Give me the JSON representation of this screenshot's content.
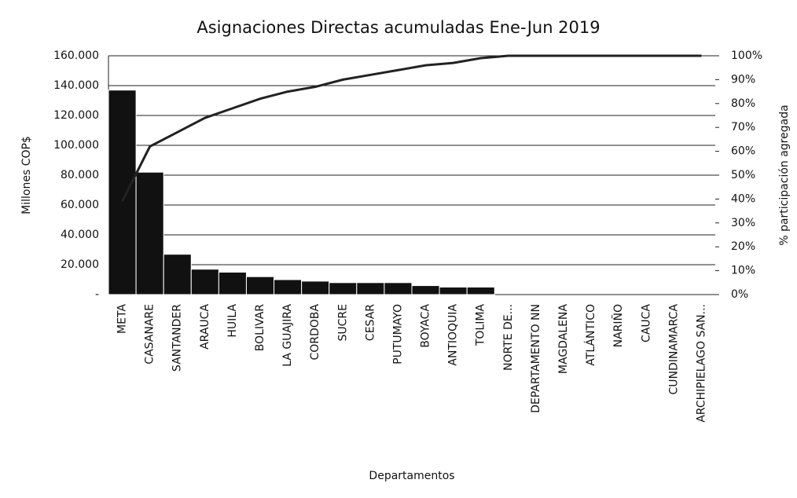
{
  "chart_data": {
    "type": "bar",
    "title": "Asignaciones Directas acumuladas Ene-Jun 2019",
    "x_label": "Departamentos",
    "y_label": "Millones COP$",
    "y2_label": "% participación agregada",
    "categories": [
      "META",
      "CASANARE",
      "SANTANDER",
      "ARAUCA",
      "HUILA",
      "BOLIVAR",
      "LA GUAJIRA",
      "CORDOBA",
      "SUCRE",
      "CESAR",
      "PUTUMAYO",
      "BOYACA",
      "ANTIOQUIA",
      "TOLIMA",
      "NORTE DE...",
      "DEPARTAMENTO NN",
      "MAGDALENA",
      "ATLÁNTICO",
      "NARIÑO",
      "CAUCA",
      "CUNDINAMARCA",
      "ARCHIPIELAGO SAN..."
    ],
    "series": [
      {
        "name": "Asignaciones",
        "type": "bar",
        "color": "#111111",
        "values": [
          137000,
          82000,
          27000,
          17000,
          15000,
          12000,
          10000,
          9000,
          8000,
          8000,
          8000,
          6000,
          5000,
          5000,
          0,
          0,
          0,
          0,
          0,
          0,
          0,
          0
        ]
      },
      {
        "name": "% participación agregada",
        "type": "line",
        "axis": "y2",
        "color": "#222222",
        "values": [
          39,
          62,
          68,
          74,
          78,
          82,
          85,
          87,
          90,
          92,
          94,
          96,
          97,
          99,
          100,
          100,
          100,
          100,
          100,
          100,
          100,
          100
        ]
      }
    ],
    "ylim": [
      0,
      160000
    ],
    "yticks": [
      {
        "value": 0,
        "label": "-"
      },
      {
        "value": 20000,
        "label": "20.000"
      },
      {
        "value": 40000,
        "label": "40.000"
      },
      {
        "value": 60000,
        "label": "60.000"
      },
      {
        "value": 80000,
        "label": "80.000"
      },
      {
        "value": 100000,
        "label": "100.000"
      },
      {
        "value": 120000,
        "label": "120.000"
      },
      {
        "value": 140000,
        "label": "140.000"
      },
      {
        "value": 160000,
        "label": "160.000"
      }
    ],
    "y2lim": [
      0,
      100
    ],
    "y2ticks": [
      {
        "value": 0,
        "label": "0%"
      },
      {
        "value": 10,
        "label": "10%"
      },
      {
        "value": 20,
        "label": "20%"
      },
      {
        "value": 30,
        "label": "30%"
      },
      {
        "value": 40,
        "label": "40%"
      },
      {
        "value": 50,
        "label": "50%"
      },
      {
        "value": 60,
        "label": "60%"
      },
      {
        "value": 70,
        "label": "70%"
      },
      {
        "value": 80,
        "label": "80%"
      },
      {
        "value": 90,
        "label": "90%"
      },
      {
        "value": 100,
        "label": "100%"
      }
    ],
    "grid": true
  }
}
